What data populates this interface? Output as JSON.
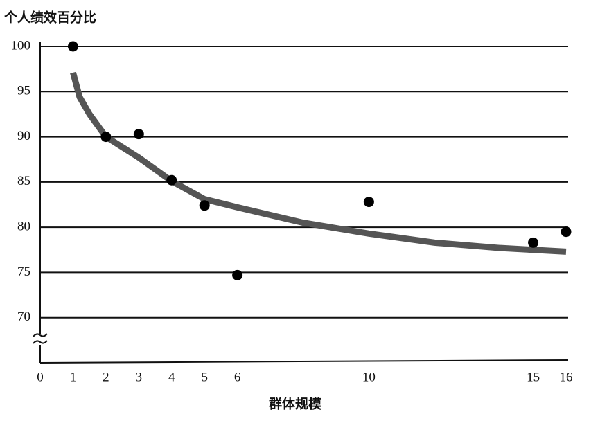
{
  "chart_data": {
    "type": "scatter",
    "y_label": "个人绩效百分比",
    "x_label": "群体规模",
    "x": [
      1,
      2,
      3,
      4,
      5,
      6,
      10,
      15,
      16
    ],
    "values": [
      100,
      90,
      90.3,
      85.2,
      82.4,
      74.7,
      82.8,
      78.3,
      79.5
    ],
    "color": "#000000",
    "trend": {
      "x": [
        1,
        1.2,
        1.5,
        2,
        3,
        4,
        5,
        6,
        8,
        10,
        12,
        14,
        16
      ],
      "values": [
        97.1,
        94.4,
        92.5,
        90,
        87.7,
        85.1,
        83.1,
        82.2,
        80.5,
        79.3,
        78.3,
        77.7,
        77.3
      ],
      "color": "#555555"
    },
    "xlim": [
      0,
      16
    ],
    "ylim": [
      65,
      100
    ],
    "xticks": [
      0,
      1,
      2,
      3,
      4,
      5,
      6,
      10,
      15,
      16
    ],
    "yticks": [
      70,
      75,
      80,
      85,
      90,
      95,
      100
    ],
    "grid": true
  }
}
